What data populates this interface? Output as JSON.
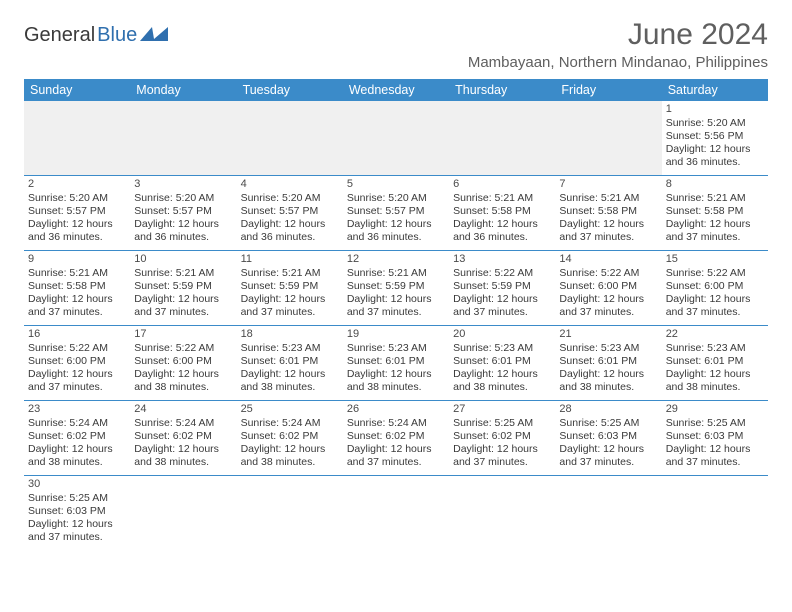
{
  "logo": {
    "text_dark": "General",
    "text_blue": "Blue",
    "shape_color": "#2f6fae"
  },
  "title": "June 2024",
  "location": "Mambayaan, Northern Mindanao, Philippines",
  "colors": {
    "header_bar": "#3b8bc9",
    "header_text": "#ffffff",
    "grid_line": "#3b8bc9",
    "blank_cell": "#f0f0f0",
    "body_text": "#3a3a3a",
    "title_text": "#5f5f5f"
  },
  "day_names": [
    "Sunday",
    "Monday",
    "Tuesday",
    "Wednesday",
    "Thursday",
    "Friday",
    "Saturday"
  ],
  "labels": {
    "sunrise": "Sunrise:",
    "sunset": "Sunset:",
    "daylight": "Daylight:"
  },
  "weeks": [
    [
      {
        "blank": true
      },
      {
        "blank": true
      },
      {
        "blank": true
      },
      {
        "blank": true
      },
      {
        "blank": true
      },
      {
        "blank": true
      },
      {
        "day": "1",
        "sunrise": "5:20 AM",
        "sunset": "5:56 PM",
        "daylight": "12 hours and 36 minutes."
      }
    ],
    [
      {
        "day": "2",
        "sunrise": "5:20 AM",
        "sunset": "5:57 PM",
        "daylight": "12 hours and 36 minutes."
      },
      {
        "day": "3",
        "sunrise": "5:20 AM",
        "sunset": "5:57 PM",
        "daylight": "12 hours and 36 minutes."
      },
      {
        "day": "4",
        "sunrise": "5:20 AM",
        "sunset": "5:57 PM",
        "daylight": "12 hours and 36 minutes."
      },
      {
        "day": "5",
        "sunrise": "5:20 AM",
        "sunset": "5:57 PM",
        "daylight": "12 hours and 36 minutes."
      },
      {
        "day": "6",
        "sunrise": "5:21 AM",
        "sunset": "5:58 PM",
        "daylight": "12 hours and 36 minutes."
      },
      {
        "day": "7",
        "sunrise": "5:21 AM",
        "sunset": "5:58 PM",
        "daylight": "12 hours and 37 minutes."
      },
      {
        "day": "8",
        "sunrise": "5:21 AM",
        "sunset": "5:58 PM",
        "daylight": "12 hours and 37 minutes."
      }
    ],
    [
      {
        "day": "9",
        "sunrise": "5:21 AM",
        "sunset": "5:58 PM",
        "daylight": "12 hours and 37 minutes."
      },
      {
        "day": "10",
        "sunrise": "5:21 AM",
        "sunset": "5:59 PM",
        "daylight": "12 hours and 37 minutes."
      },
      {
        "day": "11",
        "sunrise": "5:21 AM",
        "sunset": "5:59 PM",
        "daylight": "12 hours and 37 minutes."
      },
      {
        "day": "12",
        "sunrise": "5:21 AM",
        "sunset": "5:59 PM",
        "daylight": "12 hours and 37 minutes."
      },
      {
        "day": "13",
        "sunrise": "5:22 AM",
        "sunset": "5:59 PM",
        "daylight": "12 hours and 37 minutes."
      },
      {
        "day": "14",
        "sunrise": "5:22 AM",
        "sunset": "6:00 PM",
        "daylight": "12 hours and 37 minutes."
      },
      {
        "day": "15",
        "sunrise": "5:22 AM",
        "sunset": "6:00 PM",
        "daylight": "12 hours and 37 minutes."
      }
    ],
    [
      {
        "day": "16",
        "sunrise": "5:22 AM",
        "sunset": "6:00 PM",
        "daylight": "12 hours and 37 minutes."
      },
      {
        "day": "17",
        "sunrise": "5:22 AM",
        "sunset": "6:00 PM",
        "daylight": "12 hours and 38 minutes."
      },
      {
        "day": "18",
        "sunrise": "5:23 AM",
        "sunset": "6:01 PM",
        "daylight": "12 hours and 38 minutes."
      },
      {
        "day": "19",
        "sunrise": "5:23 AM",
        "sunset": "6:01 PM",
        "daylight": "12 hours and 38 minutes."
      },
      {
        "day": "20",
        "sunrise": "5:23 AM",
        "sunset": "6:01 PM",
        "daylight": "12 hours and 38 minutes."
      },
      {
        "day": "21",
        "sunrise": "5:23 AM",
        "sunset": "6:01 PM",
        "daylight": "12 hours and 38 minutes."
      },
      {
        "day": "22",
        "sunrise": "5:23 AM",
        "sunset": "6:01 PM",
        "daylight": "12 hours and 38 minutes."
      }
    ],
    [
      {
        "day": "23",
        "sunrise": "5:24 AM",
        "sunset": "6:02 PM",
        "daylight": "12 hours and 38 minutes."
      },
      {
        "day": "24",
        "sunrise": "5:24 AM",
        "sunset": "6:02 PM",
        "daylight": "12 hours and 38 minutes."
      },
      {
        "day": "25",
        "sunrise": "5:24 AM",
        "sunset": "6:02 PM",
        "daylight": "12 hours and 38 minutes."
      },
      {
        "day": "26",
        "sunrise": "5:24 AM",
        "sunset": "6:02 PM",
        "daylight": "12 hours and 37 minutes."
      },
      {
        "day": "27",
        "sunrise": "5:25 AM",
        "sunset": "6:02 PM",
        "daylight": "12 hours and 37 minutes."
      },
      {
        "day": "28",
        "sunrise": "5:25 AM",
        "sunset": "6:03 PM",
        "daylight": "12 hours and 37 minutes."
      },
      {
        "day": "29",
        "sunrise": "5:25 AM",
        "sunset": "6:03 PM",
        "daylight": "12 hours and 37 minutes."
      }
    ],
    [
      {
        "day": "30",
        "sunrise": "5:25 AM",
        "sunset": "6:03 PM",
        "daylight": "12 hours and 37 minutes."
      },
      {
        "blank": true,
        "no_bg": true
      },
      {
        "blank": true,
        "no_bg": true
      },
      {
        "blank": true,
        "no_bg": true
      },
      {
        "blank": true,
        "no_bg": true
      },
      {
        "blank": true,
        "no_bg": true
      },
      {
        "blank": true,
        "no_bg": true
      }
    ]
  ]
}
